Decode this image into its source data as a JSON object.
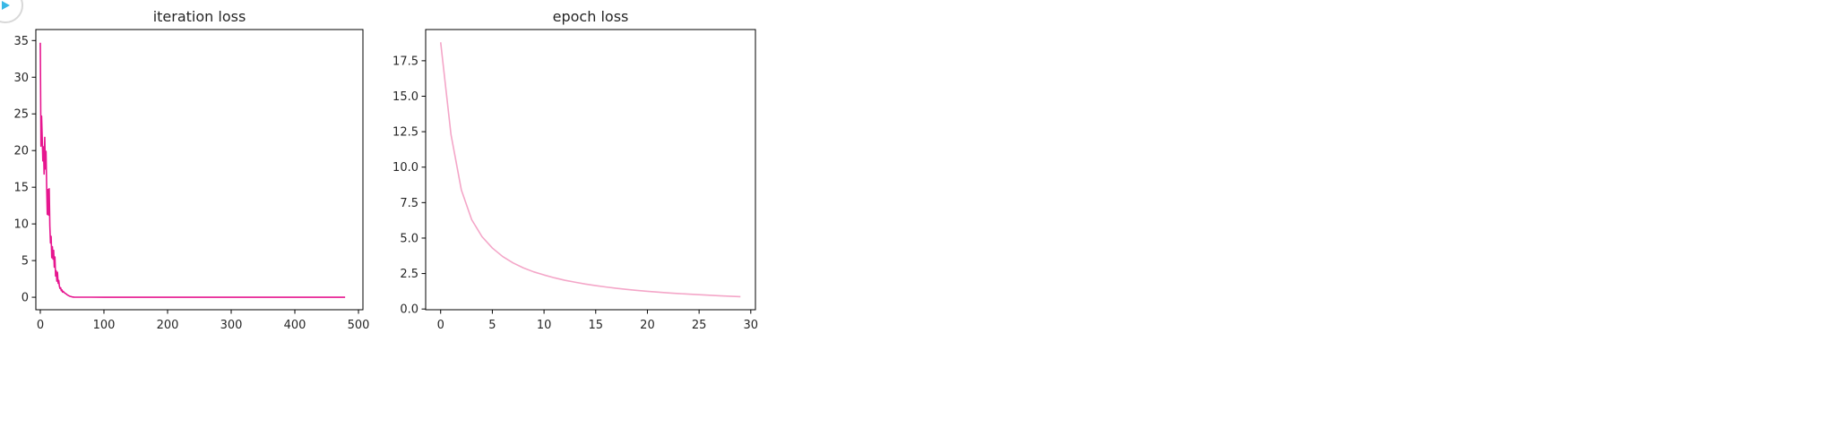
{
  "chart_data": [
    {
      "type": "line",
      "title": "iteration loss",
      "xlim": [
        -7,
        507
      ],
      "ylim": [
        -1.7,
        36.5
      ],
      "x_ticks": [
        0,
        100,
        200,
        300,
        400,
        500
      ],
      "y_ticks": [
        0,
        5,
        10,
        15,
        20,
        25,
        30,
        35
      ],
      "x_tick_labels": [
        "0",
        "100",
        "200",
        "300",
        "400",
        "500"
      ],
      "y_tick_labels": [
        "0",
        "5",
        "10",
        "15",
        "20",
        "25",
        "30",
        "35"
      ],
      "color": "#e6168f",
      "series": [
        {
          "x": [
            0,
            1,
            2,
            3,
            4,
            5,
            6,
            7,
            8,
            9,
            10,
            11,
            12,
            13,
            14,
            15,
            16,
            17,
            18,
            19,
            20,
            21,
            22,
            23,
            24,
            25,
            26,
            27,
            28,
            29,
            30,
            31,
            32,
            33,
            34,
            35,
            36,
            38,
            40,
            42,
            44,
            46,
            48,
            50,
            53,
            56,
            60,
            70,
            80,
            100,
            150,
            200,
            250,
            300,
            350,
            400,
            450,
            479
          ],
          "y": [
            34.7,
            20.6,
            24.7,
            21.8,
            18.6,
            20.5,
            16.8,
            21.8,
            17.5,
            19.9,
            15.1,
            11.3,
            14.7,
            11.2,
            14.8,
            9.7,
            7.4,
            8.3,
            5.4,
            6.9,
            5.2,
            6.4,
            4.1,
            5.5,
            2.9,
            3.6,
            2.2,
            3.4,
            1.9,
            2.3,
            1.5,
            1.2,
            1.3,
            0.9,
            1.0,
            0.7,
            0.8,
            0.6,
            0.5,
            0.35,
            0.25,
            0.15,
            0.1,
            0.05,
            0.02,
            0.01,
            0.01,
            0.01,
            0.01,
            0.0,
            0.0,
            0.0,
            0.0,
            0.0,
            0.0,
            0.0,
            0.0,
            0.0
          ]
        }
      ],
      "grid": false
    },
    {
      "type": "line",
      "title": "epoch loss",
      "xlim": [
        -1.45,
        30.45
      ],
      "ylim": [
        -0.05,
        19.7
      ],
      "x_ticks": [
        0,
        5,
        10,
        15,
        20,
        25,
        30
      ],
      "y_ticks": [
        0.0,
        2.5,
        5.0,
        7.5,
        10.0,
        12.5,
        15.0,
        17.5
      ],
      "x_tick_labels": [
        "0",
        "5",
        "10",
        "15",
        "20",
        "25",
        "30"
      ],
      "y_tick_labels": [
        "0.0",
        "2.5",
        "5.0",
        "7.5",
        "10.0",
        "12.5",
        "15.0",
        "17.5"
      ],
      "color": "#f4a6c8",
      "series": [
        {
          "x": [
            0,
            1,
            2,
            3,
            4,
            5,
            6,
            7,
            8,
            9,
            10,
            11,
            12,
            13,
            14,
            15,
            16,
            17,
            18,
            19,
            20,
            21,
            22,
            23,
            24,
            25,
            26,
            27,
            28,
            29
          ],
          "y": [
            18.8,
            12.3,
            8.4,
            6.3,
            5.1,
            4.3,
            3.7,
            3.25,
            2.9,
            2.62,
            2.4,
            2.2,
            2.03,
            1.89,
            1.76,
            1.65,
            1.55,
            1.46,
            1.38,
            1.31,
            1.25,
            1.19,
            1.14,
            1.09,
            1.05,
            1.01,
            0.97,
            0.93,
            0.9,
            0.87
          ]
        }
      ],
      "grid": false
    }
  ]
}
